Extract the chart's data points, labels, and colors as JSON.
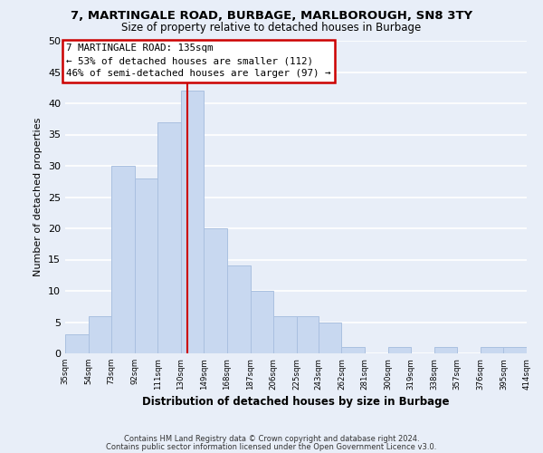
{
  "title": "7, MARTINGALE ROAD, BURBAGE, MARLBOROUGH, SN8 3TY",
  "subtitle": "Size of property relative to detached houses in Burbage",
  "xlabel": "Distribution of detached houses by size in Burbage",
  "ylabel": "Number of detached properties",
  "bar_color": "#c8d8f0",
  "bar_edgecolor": "#aac0e0",
  "bins": [
    35,
    54,
    73,
    92,
    111,
    130,
    149,
    168,
    187,
    206,
    225,
    243,
    262,
    281,
    300,
    319,
    338,
    357,
    376,
    395,
    414
  ],
  "counts": [
    3,
    6,
    30,
    28,
    37,
    42,
    20,
    14,
    10,
    6,
    6,
    5,
    1,
    0,
    1,
    0,
    1,
    0,
    1,
    1
  ],
  "tick_labels": [
    "35sqm",
    "54sqm",
    "73sqm",
    "92sqm",
    "111sqm",
    "130sqm",
    "149sqm",
    "168sqm",
    "187sqm",
    "206sqm",
    "225sqm",
    "243sqm",
    "262sqm",
    "281sqm",
    "300sqm",
    "319sqm",
    "338sqm",
    "357sqm",
    "376sqm",
    "395sqm",
    "414sqm"
  ],
  "ylim": [
    0,
    50
  ],
  "yticks": [
    0,
    5,
    10,
    15,
    20,
    25,
    30,
    35,
    40,
    45,
    50
  ],
  "vline_x": 135,
  "vline_color": "#cc0000",
  "annotation_title": "7 MARTINGALE ROAD: 135sqm",
  "annotation_line1": "← 53% of detached houses are smaller (112)",
  "annotation_line2": "46% of semi-detached houses are larger (97) →",
  "annotation_box_facecolor": "#ffffff",
  "annotation_box_edgecolor": "#cc0000",
  "footer_line1": "Contains HM Land Registry data © Crown copyright and database right 2024.",
  "footer_line2": "Contains public sector information licensed under the Open Government Licence v3.0.",
  "background_color": "#e8eef8",
  "grid_color": "#ffffff"
}
